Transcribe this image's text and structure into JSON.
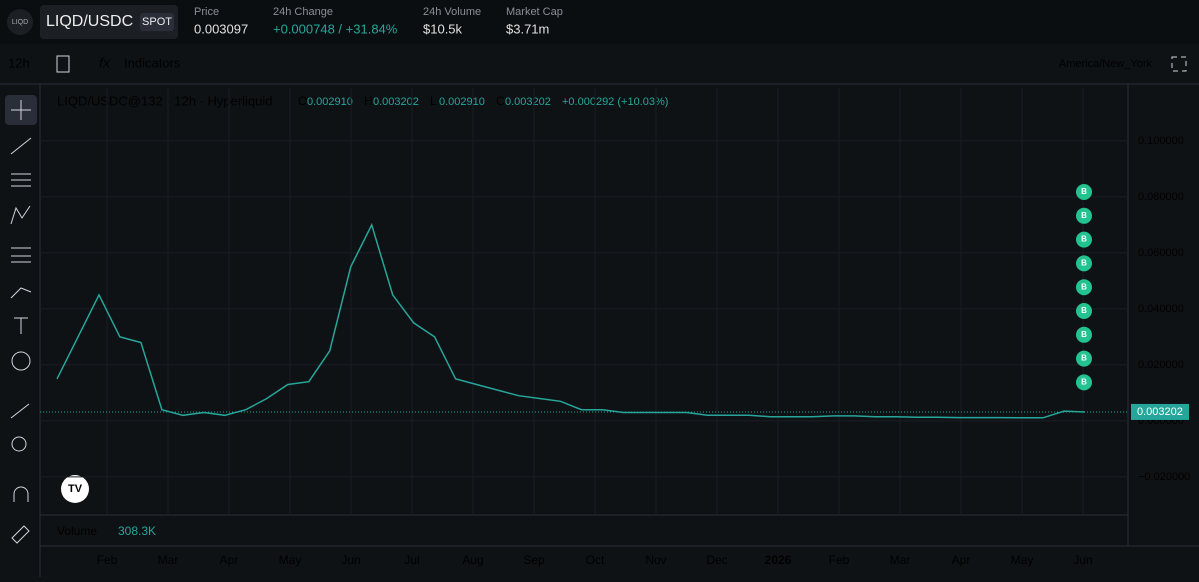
{
  "header": {
    "logo": "LIQD",
    "symbol": "LIQD/USDC",
    "badge": "SPOT",
    "stats": [
      {
        "label": "Price",
        "value": "0.003097"
      },
      {
        "label": "24h Change",
        "value": "+0.000748 / +31.84%"
      },
      {
        "label": "24h Volume",
        "value": "$10.5k"
      },
      {
        "label": "Market Cap",
        "value": "$3.71m"
      }
    ]
  },
  "toolbar": {
    "interval": "12h",
    "indicators": "Indicators",
    "timezone": "America/New_York"
  },
  "legend": {
    "title": "LIQD/USDC@132 · 12h · Hyperliquid",
    "ohlc": [
      {
        "key": "O",
        "value": "0.002910"
      },
      {
        "key": "H",
        "value": "0.003202"
      },
      {
        "key": "L",
        "value": "0.002910"
      },
      {
        "key": "C",
        "value": "0.003202"
      }
    ],
    "change": "+0.000292 (+10.03%)"
  },
  "volume": {
    "label": "Volume",
    "value": "308.3K"
  },
  "chart": {
    "type": "line",
    "color": "#26a69a",
    "values": [
      0.015,
      0.03,
      0.045,
      0.03,
      0.028,
      0.004,
      0.002,
      0.003,
      0.002,
      0.004,
      0.008,
      0.013,
      0.014,
      0.025,
      0.055,
      0.07,
      0.045,
      0.035,
      0.03,
      0.015,
      0.013,
      0.011,
      0.009,
      0.008,
      0.007,
      0.004,
      0.004,
      0.003,
      0.003,
      0.003,
      0.003,
      0.002,
      0.002,
      0.002,
      0.0015,
      0.0015,
      0.0015,
      0.0018,
      0.0018,
      0.0015,
      0.0015,
      0.0013,
      0.0013,
      0.0012,
      0.0012,
      0.0012,
      0.0011,
      0.0011,
      0.0035,
      0.0032
    ],
    "ylim": [
      -0.0336,
      0.1189
    ],
    "yticks": [
      {
        "value": 0.1,
        "label": "0.100000"
      },
      {
        "value": 0.08,
        "label": "0.080000"
      },
      {
        "value": 0.06,
        "label": "0.060000"
      },
      {
        "value": 0.04,
        "label": "0.040000"
      },
      {
        "value": 0.02,
        "label": "0.020000"
      },
      {
        "value": 0,
        "label": "0.000000"
      },
      {
        "value": -0.02,
        "label": "−0.020000"
      }
    ],
    "last_price": {
      "value": 0.003202,
      "label": "0.003202"
    },
    "marker_label": "B",
    "months": [
      "Feb",
      "Mar",
      "Apr",
      "May",
      "Jun",
      "Jul",
      "Aug",
      "Sep",
      "Oct",
      "Nov",
      "Dec",
      "2026",
      "Feb",
      "Mar",
      "Apr",
      "May",
      "Jun"
    ]
  }
}
